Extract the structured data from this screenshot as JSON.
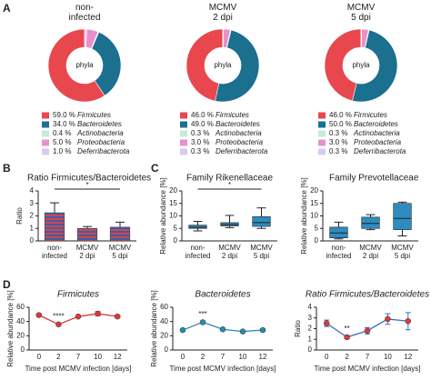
{
  "panel_labels": [
    "A",
    "B",
    "C",
    "D"
  ],
  "chart_data": [
    {
      "type": "pie",
      "title": "non-\ninfected",
      "center_label": "phyla",
      "categories": [
        "Firmicutes",
        "Bacteroidetes",
        "Actinobacteria",
        "Proteobacteria",
        "Deferribacterota"
      ],
      "values": [
        59.0,
        34.0,
        0.4,
        5.0,
        1.0
      ],
      "value_labels": [
        "59.0 %",
        "34.0 %",
        "0.4 %",
        "5.0 %",
        "1.0 %"
      ],
      "colors": [
        "#e8474e",
        "#1b6f8f",
        "#c8ead8",
        "#e890cc",
        "#d8ccec"
      ]
    },
    {
      "type": "pie",
      "title": "MCMV\n2 dpi",
      "center_label": "phyla",
      "categories": [
        "Firmicutes",
        "Bacteroidetes",
        "Actinobacteria",
        "Proteobacteria",
        "Deferribacterota"
      ],
      "values": [
        46.0,
        49.0,
        0.3,
        3.0,
        0.3
      ],
      "value_labels": [
        "46.0 %",
        "49.0 %",
        "0.3 %",
        "3.0 %",
        "0.3 %"
      ],
      "colors": [
        "#e8474e",
        "#1b6f8f",
        "#c8ead8",
        "#e890cc",
        "#d8ccec"
      ]
    },
    {
      "type": "pie",
      "title": "MCMV\n5 dpi",
      "center_label": "phyla",
      "categories": [
        "Firmicutes",
        "Bacteroidetes",
        "Actinobacteria",
        "Proteobacteria",
        "Deferribacterota"
      ],
      "values": [
        46.0,
        50.0,
        0.3,
        3.0,
        0.3
      ],
      "value_labels": [
        "46.0 %",
        "50.0 %",
        "0.3 %",
        "3.0 %",
        "0.3 %"
      ],
      "colors": [
        "#e8474e",
        "#1b6f8f",
        "#c8ead8",
        "#e890cc",
        "#d8ccec"
      ]
    },
    {
      "type": "bar",
      "title": "Ratio Firmicutes/Bacteroidetes",
      "ylabel": "Ratio",
      "categories": [
        "non-\ninfected",
        "MCMV\n2 dpi",
        "MCMV\n5 dpi"
      ],
      "values": [
        2.25,
        1.0,
        1.1
      ],
      "errors": [
        0.8,
        0.15,
        0.4
      ],
      "stripe_colors": [
        "#d9434a",
        "#3a5fa8"
      ],
      "ylim": [
        0,
        4
      ],
      "yticks": [
        0,
        1,
        2,
        3,
        4
      ],
      "significance": "*"
    },
    {
      "type": "box",
      "title": "Family Rikenellaceae",
      "ylabel": "Relative abundance [%]",
      "categories": [
        "non-\ninfected",
        "MCMV\n2 dpi",
        "MCMV\n5 dpi"
      ],
      "boxes": [
        {
          "min": 4.0,
          "q1": 5.0,
          "median": 5.5,
          "q3": 6.3,
          "max": 7.8
        },
        {
          "min": 5.3,
          "q1": 6.0,
          "median": 6.5,
          "q3": 7.3,
          "max": 10.2
        },
        {
          "min": 5.0,
          "q1": 5.8,
          "median": 7.3,
          "q3": 9.7,
          "max": 13.2
        }
      ],
      "color": "#2e8cc0",
      "ylim": [
        0,
        20
      ],
      "yticks": [
        0,
        5,
        10,
        15,
        20
      ],
      "significance": "*"
    },
    {
      "type": "box",
      "title": "Family Prevotellaceae",
      "ylabel": "Relative abundance [%]",
      "categories": [
        "non-\ninfected",
        "MCMV\n2 dpi",
        "MCMV\n5 dpi"
      ],
      "boxes": [
        {
          "min": 0.8,
          "q1": 1.2,
          "median": 3.2,
          "q3": 5.5,
          "max": 7.5
        },
        {
          "min": 4.5,
          "q1": 5.0,
          "median": 7.0,
          "q3": 9.5,
          "max": 10.5
        },
        {
          "min": 2.0,
          "q1": 4.5,
          "median": 9.0,
          "q3": 15.0,
          "max": 15.5
        }
      ],
      "color": "#2e8cc0",
      "ylim": [
        0,
        20
      ],
      "yticks": [
        0,
        5,
        10,
        15,
        20
      ]
    },
    {
      "type": "line",
      "title": "Firmicutes",
      "ylabel": "Relative abundance [%]",
      "xlabel": "Time post MCMV infection [days]",
      "categories": [
        "0",
        "2",
        "7",
        "10",
        "12"
      ],
      "values": [
        49,
        36,
        47,
        51,
        47
      ],
      "errors": [
        1.5,
        1.5,
        1.5,
        3,
        2
      ],
      "color": "#d93a3a",
      "marker_color": "#d93a3a",
      "ylim": [
        0,
        60
      ],
      "yticks": [
        0,
        20,
        40,
        60
      ],
      "significance_labels": [
        null,
        "****",
        null,
        null,
        null
      ]
    },
    {
      "type": "line",
      "title": "Bacteroidetes",
      "ylabel": "Relative abundance [%]",
      "xlabel": "Time post MCMV infection [days]",
      "categories": [
        "0",
        "2",
        "7",
        "10",
        "12"
      ],
      "values": [
        28,
        39,
        29,
        26,
        28
      ],
      "errors": [
        1.5,
        2,
        1.5,
        1.5,
        2
      ],
      "color": "#2a8aab",
      "marker_color": "#2a8aab",
      "ylim": [
        0,
        60
      ],
      "yticks": [
        0,
        20,
        40,
        60
      ],
      "significance_labels": [
        null,
        "***",
        null,
        null,
        null
      ]
    },
    {
      "type": "line",
      "title": "Ratio Firmicutes/Bacteroidetes",
      "ylabel": "Ratio",
      "xlabel": "Time post MCMV infection [days]",
      "categories": [
        "0",
        "2",
        "7",
        "10",
        "12"
      ],
      "values": [
        2.5,
        1.2,
        1.8,
        2.9,
        2.7
      ],
      "errors": [
        0.3,
        0.15,
        0.3,
        0.5,
        0.8
      ],
      "color": "#3a6fc0",
      "marker_color": "#d93a3a",
      "ylim": [
        0,
        4
      ],
      "yticks": [
        0,
        1,
        2,
        3,
        4
      ],
      "significance_labels": [
        null,
        "**",
        null,
        null,
        null
      ]
    }
  ]
}
